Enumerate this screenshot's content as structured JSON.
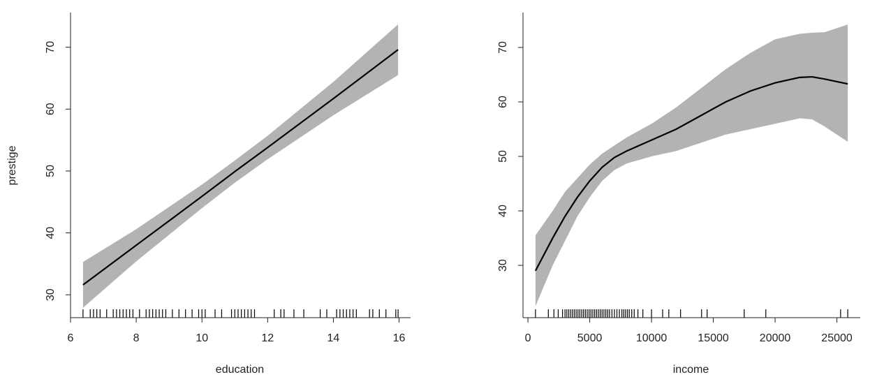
{
  "chart_data": [
    {
      "type": "line",
      "xlabel": "education",
      "ylabel": "prestige",
      "x": [
        6.38,
        8,
        10,
        11,
        12,
        14,
        15.97
      ],
      "values": [
        31.6,
        38.0,
        45.9,
        49.9,
        53.8,
        61.7,
        69.6
      ],
      "lower": [
        27.9,
        35.4,
        44.0,
        48.1,
        51.9,
        59.0,
        65.5
      ],
      "upper": [
        35.3,
        40.6,
        47.8,
        51.7,
        55.7,
        64.4,
        73.7
      ],
      "color": "#000000",
      "band_color": "#b3b3b3",
      "rug": [
        6.38,
        6.6,
        6.7,
        6.8,
        6.9,
        7.1,
        7.3,
        7.4,
        7.5,
        7.6,
        7.7,
        7.8,
        7.9,
        8.1,
        8.3,
        8.4,
        8.5,
        8.6,
        8.7,
        8.8,
        8.9,
        9.1,
        9.3,
        9.5,
        9.7,
        9.9,
        10.0,
        10.1,
        10.4,
        10.6,
        10.9,
        11.0,
        11.1,
        11.2,
        11.3,
        11.4,
        11.5,
        11.6,
        12.2,
        12.4,
        12.5,
        12.8,
        13.1,
        13.6,
        13.8,
        14.1,
        14.2,
        14.3,
        14.4,
        14.5,
        14.6,
        14.7,
        15.1,
        15.2,
        15.4,
        15.6,
        15.9,
        15.97
      ],
      "xlim": [
        6.0,
        16.35
      ],
      "ylim": [
        26.3,
        75.6
      ],
      "xticks": [
        6,
        8,
        10,
        12,
        14,
        16
      ],
      "yticks": [
        30,
        40,
        50,
        60,
        70
      ]
    },
    {
      "type": "line",
      "xlabel": "income",
      "x": [
        611,
        2000,
        3000,
        4000,
        5000,
        6000,
        7000,
        8000,
        10000,
        12000,
        14000,
        16000,
        18000,
        20000,
        22000,
        23000,
        24000,
        25879
      ],
      "values": [
        29,
        35,
        39,
        42.5,
        45.5,
        48,
        49.8,
        51,
        53,
        55,
        57.5,
        60,
        62,
        63.5,
        64.5,
        64.6,
        64.2,
        63.3
      ],
      "lower": [
        22.5,
        30,
        34.5,
        39,
        42.5,
        45.5,
        47.5,
        48.7,
        50,
        51,
        52.5,
        54,
        55,
        56,
        57,
        56.8,
        55.5,
        52.7
      ],
      "upper": [
        35.5,
        40,
        43.5,
        46,
        48.5,
        50.5,
        52,
        53.5,
        56,
        59,
        62.5,
        66,
        69,
        71.5,
        72.5,
        72.7,
        72.8,
        74.2
      ],
      "color": "#000000",
      "band_color": "#b3b3b3",
      "rug": [
        611,
        1650,
        2100,
        2450,
        2800,
        3000,
        3150,
        3300,
        3450,
        3600,
        3750,
        3900,
        4050,
        4200,
        4350,
        4500,
        4650,
        4800,
        4950,
        5100,
        5250,
        5400,
        5550,
        5700,
        5850,
        6000,
        6150,
        6300,
        6450,
        6600,
        6800,
        7000,
        7200,
        7400,
        7600,
        7750,
        7900,
        8050,
        8200,
        8400,
        8600,
        8900,
        9300,
        10000,
        10900,
        11400,
        12350,
        14050,
        14500,
        17500,
        19250,
        25300,
        25879
      ],
      "xlim": [
        -400,
        26890
      ],
      "ylim": [
        20.4,
        76.4
      ],
      "xticks": [
        0,
        5000,
        10000,
        15000,
        20000,
        25000
      ],
      "yticks": [
        30,
        40,
        50,
        60,
        70
      ]
    }
  ]
}
